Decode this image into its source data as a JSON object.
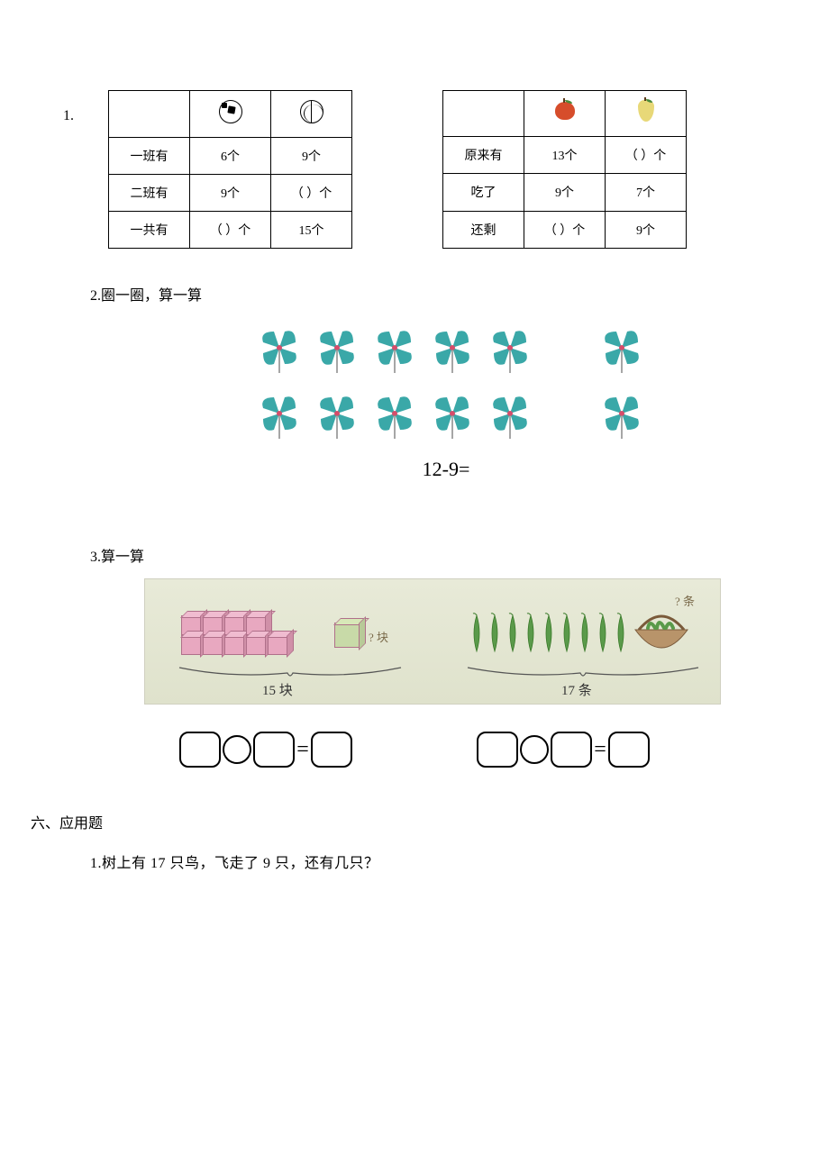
{
  "q1": {
    "number": "1.",
    "table_a": {
      "row_labels": [
        "一班有",
        "二班有",
        "一共有"
      ],
      "cells": {
        "r1c1": "6个",
        "r1c2": "9个",
        "r2c1": "9个",
        "r2c2": "（    ）个",
        "r3c1": "（    ）个",
        "r3c2": "15个"
      },
      "header_icons": [
        "soccer",
        "basketball"
      ]
    },
    "table_b": {
      "row_labels": [
        "原来有",
        "吃了",
        "还剩"
      ],
      "cells": {
        "r1c1": "13个",
        "r1c2": "（    ）个",
        "r2c1": "9个",
        "r2c2": "7个",
        "r3c1": "（    ）个",
        "r3c2": "9个"
      },
      "header_icons": [
        "apple",
        "pear"
      ]
    }
  },
  "q2": {
    "label": "2.圈一圈，算一算",
    "rows": [
      {
        "left_count": 5,
        "right_count": 1
      },
      {
        "left_count": 5,
        "right_count": 1
      }
    ],
    "expression": "12-9=",
    "pinwheel_color": "#3aa8a8",
    "pinwheel_accent": "#d64d6b"
  },
  "q3": {
    "label": "3.算一算",
    "left_total_label": "15 块",
    "right_total_label": "17 条",
    "left_question": "? 块",
    "right_question": "? 条",
    "cube_rows": 2,
    "cube_cols": 5,
    "cube_color": "#e8a8c0",
    "single_cube_color": "#c8daa8",
    "pea_count": 9,
    "pea_color": "#5a9a4a",
    "basket_color": "#9a7a4a",
    "bg_color": "#e4e7d2"
  },
  "equations": {
    "eq_symbol": "="
  },
  "sec6": {
    "title": "六、应用题",
    "q1": "1.树上有 17 只鸟，飞走了 9 只，还有几只？"
  }
}
